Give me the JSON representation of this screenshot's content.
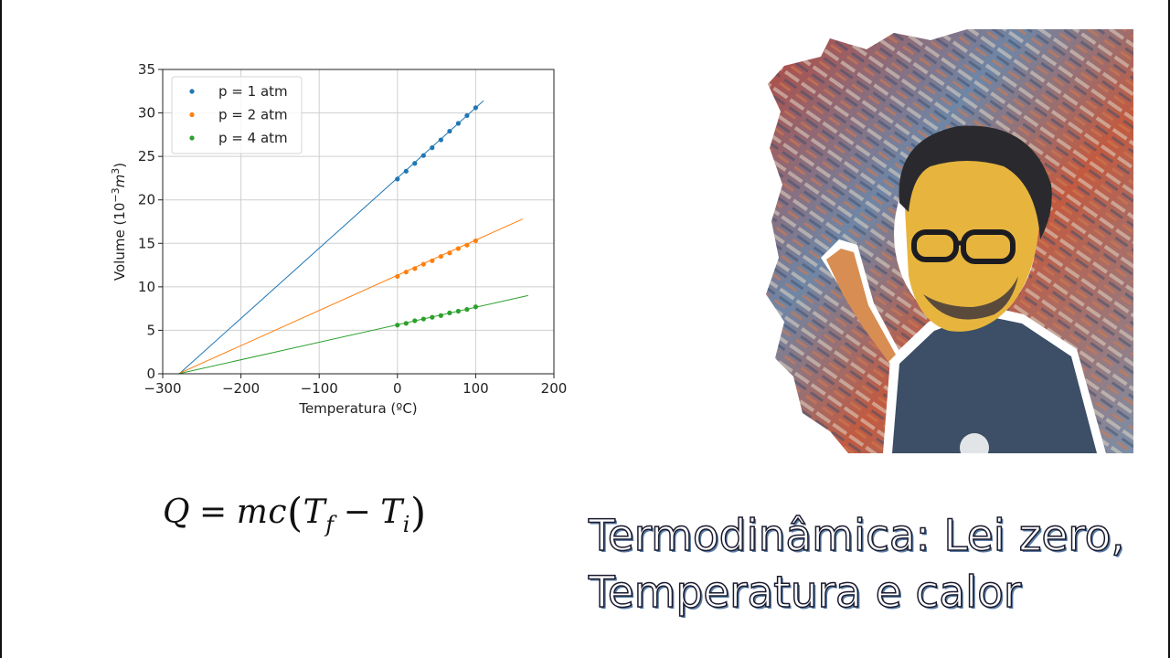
{
  "chart_data": {
    "type": "scatter",
    "xlabel": "Temperatura (ºC)",
    "ylabel_main": "Volume (10",
    "ylabel_exp": "−3",
    "ylabel_unit": "m",
    "ylabel_unit_exp": "3",
    "ylabel_close": ")",
    "xlim": [
      -300,
      200
    ],
    "ylim": [
      0,
      35
    ],
    "xticks": [
      -300,
      -200,
      -100,
      0,
      100,
      200
    ],
    "xtick_labels": [
      "−300",
      "−200",
      "−100",
      "0",
      "100",
      "200"
    ],
    "yticks": [
      0,
      5,
      10,
      15,
      20,
      25,
      30,
      35
    ],
    "ytick_labels": [
      "0",
      "5",
      "10",
      "15",
      "20",
      "25",
      "30",
      "35"
    ],
    "grid": true,
    "legend_position": "top-left",
    "series": [
      {
        "name": "p = 1 atm",
        "color": "#1f77b4",
        "x": [
          0,
          11.1,
          22.2,
          33.3,
          44.4,
          55.6,
          66.7,
          77.8,
          88.9,
          100
        ],
        "y": [
          22.4,
          23.3,
          24.2,
          25.1,
          26.0,
          26.9,
          27.9,
          28.8,
          29.7,
          30.6
        ],
        "fit_x": [
          -290,
          110
        ],
        "fit_y": [
          -0.9,
          31.4
        ]
      },
      {
        "name": "p = 2 atm",
        "color": "#ff7f0e",
        "x": [
          0,
          11.1,
          22.2,
          33.3,
          44.4,
          55.6,
          66.7,
          77.8,
          88.9,
          100
        ],
        "y": [
          11.2,
          11.7,
          12.1,
          12.6,
          13.0,
          13.5,
          13.9,
          14.4,
          14.8,
          15.3
        ],
        "fit_x": [
          -290,
          160
        ],
        "fit_y": [
          -0.4,
          17.8
        ]
      },
      {
        "name": "p = 4 atm",
        "color": "#2ca02c",
        "x": [
          0,
          11.1,
          22.2,
          33.3,
          44.4,
          55.6,
          66.7,
          77.8,
          88.9,
          100
        ],
        "y": [
          5.6,
          5.8,
          6.1,
          6.3,
          6.5,
          6.7,
          7.0,
          7.2,
          7.4,
          7.7
        ],
        "fit_x": [
          -290,
          167
        ],
        "fit_y": [
          -0.2,
          9.0
        ]
      }
    ]
  },
  "formula": {
    "Q": "Q",
    "equals": "=",
    "mc": "mc",
    "open": "(",
    "T1": "T",
    "f": "f",
    "minus": "−",
    "T2": "T",
    "i": "i",
    "close": ")"
  },
  "title": {
    "line1": "Termodinâmica: Lei zero,",
    "line2": "Temperatura e calor"
  },
  "colors": {
    "title_shadow": "#5b7fa8",
    "title_outline": "#1a1a2e"
  },
  "portrait": {
    "description_icon": "artistic-portrait-image"
  }
}
